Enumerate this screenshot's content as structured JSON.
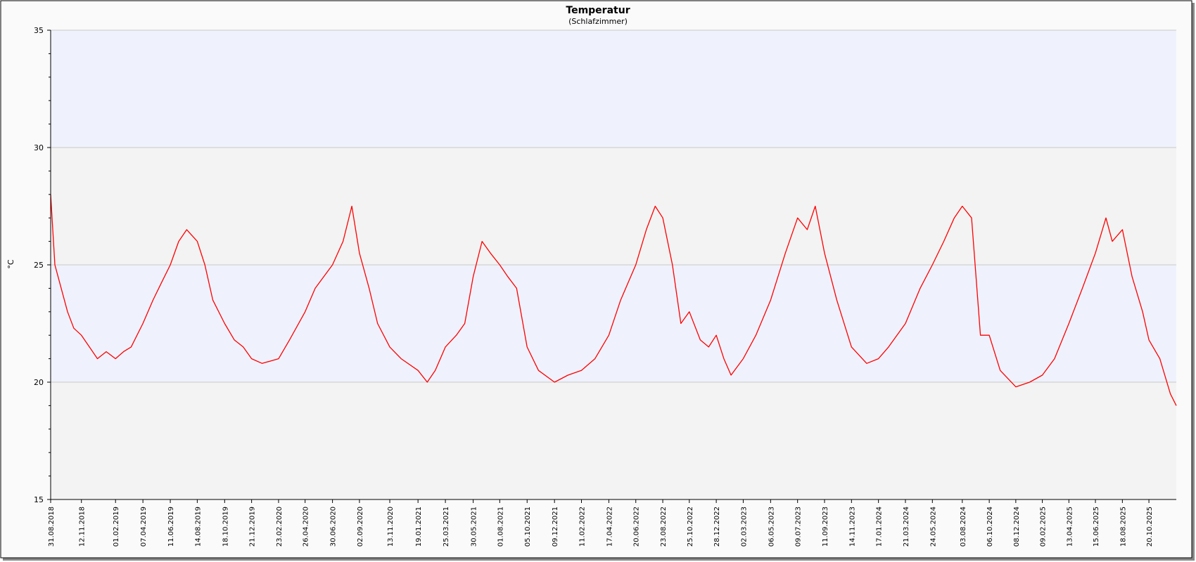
{
  "chart_data": {
    "type": "line",
    "title": "Temperatur",
    "subtitle": "(Schlafzimmer)",
    "ylabel": "°C",
    "xlabel": "",
    "ylim": [
      15,
      35
    ],
    "y_ticks": [
      "15",
      "20",
      "25",
      "30",
      "35"
    ],
    "y_minor_step": 1,
    "x_range": [
      "2018-08-31",
      "2025-12-24"
    ],
    "x_ticks": [
      "31.08.2018",
      "12.11.2018",
      "01.02.2019",
      "07.04.2019",
      "11.06.2019",
      "14.08.2019",
      "18.10.2019",
      "21.12.2019",
      "23.02.2020",
      "26.04.2020",
      "30.06.2020",
      "02.09.2020",
      "13.11.2020",
      "19.01.2021",
      "25.03.2021",
      "30.05.2021",
      "01.08.2021",
      "05.10.2021",
      "09.12.2021",
      "11.02.2022",
      "17.04.2022",
      "20.06.2022",
      "23.08.2022",
      "25.10.2022",
      "28.12.2022",
      "02.03.2023",
      "06.05.2023",
      "09.07.2023",
      "11.09.2023",
      "14.11.2023",
      "17.01.2024",
      "21.03.2024",
      "24.05.2024",
      "03.08.2024",
      "06.10.2024",
      "08.12.2024",
      "09.02.2025",
      "13.04.2025",
      "15.06.2025",
      "18.08.2025",
      "20.10.2025"
    ],
    "bands": [
      {
        "from": 30,
        "to": 35,
        "color": "#eff2fd"
      },
      {
        "from": 25,
        "to": 30,
        "color": "#f3f3f3"
      },
      {
        "from": 20,
        "to": 25,
        "color": "#eff2fd"
      },
      {
        "from": 15,
        "to": 20,
        "color": "#f3f3f3"
      }
    ],
    "grid": true,
    "series": [
      {
        "color": "#ff0000",
        "points": [
          [
            "2018-08-31",
            28.0
          ],
          [
            "2018-09-10",
            25.0
          ],
          [
            "2018-09-25",
            24.0
          ],
          [
            "2018-10-10",
            23.0
          ],
          [
            "2018-10-25",
            22.3
          ],
          [
            "2018-11-12",
            22.0
          ],
          [
            "2018-12-01",
            21.5
          ],
          [
            "2018-12-20",
            21.0
          ],
          [
            "2019-01-10",
            21.3
          ],
          [
            "2019-02-01",
            21.0
          ],
          [
            "2019-02-20",
            21.3
          ],
          [
            "2019-03-10",
            21.5
          ],
          [
            "2019-04-07",
            22.5
          ],
          [
            "2019-05-01",
            23.5
          ],
          [
            "2019-05-20",
            24.2
          ],
          [
            "2019-06-11",
            25.0
          ],
          [
            "2019-07-01",
            26.0
          ],
          [
            "2019-07-20",
            26.5
          ],
          [
            "2019-08-14",
            26.0
          ],
          [
            "2019-09-01",
            25.0
          ],
          [
            "2019-09-20",
            23.5
          ],
          [
            "2019-10-18",
            22.5
          ],
          [
            "2019-11-10",
            21.8
          ],
          [
            "2019-12-01",
            21.5
          ],
          [
            "2019-12-21",
            21.0
          ],
          [
            "2020-01-15",
            20.8
          ],
          [
            "2020-02-23",
            21.0
          ],
          [
            "2020-03-20",
            21.8
          ],
          [
            "2020-04-26",
            23.0
          ],
          [
            "2020-05-20",
            24.0
          ],
          [
            "2020-06-30",
            25.0
          ],
          [
            "2020-07-25",
            26.0
          ],
          [
            "2020-08-15",
            27.5
          ],
          [
            "2020-09-02",
            25.5
          ],
          [
            "2020-09-25",
            24.0
          ],
          [
            "2020-10-15",
            22.5
          ],
          [
            "2020-11-13",
            21.5
          ],
          [
            "2020-12-10",
            21.0
          ],
          [
            "2021-01-19",
            20.5
          ],
          [
            "2021-02-10",
            20.0
          ],
          [
            "2021-03-01",
            20.5
          ],
          [
            "2021-03-25",
            21.5
          ],
          [
            "2021-04-20",
            22.0
          ],
          [
            "2021-05-10",
            22.5
          ],
          [
            "2021-05-30",
            24.5
          ],
          [
            "2021-06-20",
            26.0
          ],
          [
            "2021-07-10",
            25.5
          ],
          [
            "2021-08-01",
            25.0
          ],
          [
            "2021-08-20",
            24.5
          ],
          [
            "2021-09-10",
            24.0
          ],
          [
            "2021-10-05",
            21.5
          ],
          [
            "2021-11-01",
            20.5
          ],
          [
            "2021-12-09",
            20.0
          ],
          [
            "2022-01-10",
            20.3
          ],
          [
            "2022-02-11",
            20.5
          ],
          [
            "2022-03-15",
            21.0
          ],
          [
            "2022-04-17",
            22.0
          ],
          [
            "2022-05-15",
            23.5
          ],
          [
            "2022-06-20",
            25.0
          ],
          [
            "2022-07-15",
            26.5
          ],
          [
            "2022-08-05",
            27.5
          ],
          [
            "2022-08-23",
            27.0
          ],
          [
            "2022-09-15",
            25.0
          ],
          [
            "2022-10-05",
            22.5
          ],
          [
            "2022-10-25",
            23.0
          ],
          [
            "2022-11-20",
            21.8
          ],
          [
            "2022-12-10",
            21.5
          ],
          [
            "2022-12-28",
            22.0
          ],
          [
            "2023-01-15",
            21.0
          ],
          [
            "2023-02-01",
            20.3
          ],
          [
            "2023-03-02",
            21.0
          ],
          [
            "2023-04-01",
            22.0
          ],
          [
            "2023-05-06",
            23.5
          ],
          [
            "2023-06-10",
            25.5
          ],
          [
            "2023-07-09",
            27.0
          ],
          [
            "2023-08-01",
            26.5
          ],
          [
            "2023-08-20",
            27.5
          ],
          [
            "2023-09-11",
            25.5
          ],
          [
            "2023-10-10",
            23.5
          ],
          [
            "2023-11-14",
            21.5
          ],
          [
            "2023-12-20",
            20.8
          ],
          [
            "2024-01-17",
            21.0
          ],
          [
            "2024-02-10",
            21.5
          ],
          [
            "2024-03-21",
            22.5
          ],
          [
            "2024-04-25",
            24.0
          ],
          [
            "2024-05-24",
            25.0
          ],
          [
            "2024-06-20",
            26.0
          ],
          [
            "2024-07-15",
            27.0
          ],
          [
            "2024-08-03",
            27.5
          ],
          [
            "2024-08-25",
            27.0
          ],
          [
            "2024-09-15",
            22.0
          ],
          [
            "2024-10-06",
            22.0
          ],
          [
            "2024-11-01",
            20.5
          ],
          [
            "2024-12-08",
            19.8
          ],
          [
            "2025-01-10",
            20.0
          ],
          [
            "2025-02-09",
            20.3
          ],
          [
            "2025-03-10",
            21.0
          ],
          [
            "2025-04-13",
            22.5
          ],
          [
            "2025-05-15",
            24.0
          ],
          [
            "2025-06-15",
            25.5
          ],
          [
            "2025-07-10",
            27.0
          ],
          [
            "2025-07-25",
            26.0
          ],
          [
            "2025-08-18",
            26.5
          ],
          [
            "2025-09-10",
            24.5
          ],
          [
            "2025-10-05",
            23.0
          ],
          [
            "2025-10-20",
            21.8
          ],
          [
            "2025-11-15",
            21.0
          ],
          [
            "2025-12-10",
            19.5
          ],
          [
            "2025-12-24",
            19.0
          ]
        ]
      }
    ]
  }
}
